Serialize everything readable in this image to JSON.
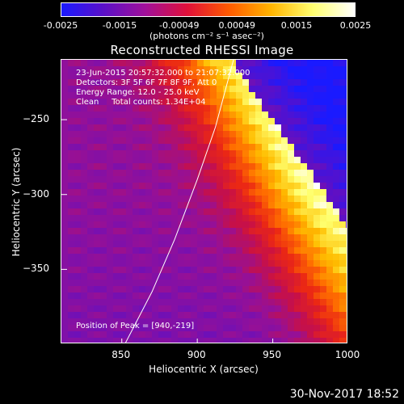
{
  "colorbar": {
    "ticks": [
      "-0.0025",
      "-0.0015",
      "-0.00049",
      "0.00049",
      "0.0015",
      "0.0025"
    ],
    "tick_values": [
      -0.0025,
      -0.0015,
      -0.00049,
      0.00049,
      0.0015,
      0.0025
    ],
    "units": "(photons cm⁻² s⁻¹ asec⁻²)",
    "range": [
      -0.0025,
      0.0025
    ],
    "gradient": [
      "#1a1aff",
      "#5a10c8",
      "#a0109a",
      "#e0103a",
      "#ff5a00",
      "#ffb400",
      "#ffff70",
      "#ffffff"
    ]
  },
  "title": "Reconstructed RHESSI Image",
  "annotations": {
    "time_range": "23-Jun-2015 20:57:32.000 to 21:07:32.000",
    "detectors": "Detectors: 3F 5F 6F 7F 8F 9F, Att 0",
    "energy_range": "Energy Range: 12.0 - 25.0 keV",
    "clean": "Clean     Total counts: 1.34E+04",
    "peak": "Position of Peak = [940,-219]"
  },
  "timestamp": "30-Nov-2017 18:52",
  "chart_data": {
    "type": "heatmap",
    "title": "Reconstructed RHESSI Image",
    "xlabel": "Heliocentric X (arcsec)",
    "ylabel": "Heliocentric Y (arcsec)",
    "xlim": [
      810,
      1000
    ],
    "ylim": [
      -400,
      -210
    ],
    "xticks": [
      850,
      900,
      950,
      1000
    ],
    "yticks": [
      -250,
      -300,
      -350
    ],
    "colorbar_range": [
      -0.0025,
      0.0025
    ],
    "peak_position": [
      940,
      -219
    ],
    "limb_curve": {
      "x": [
        852,
        870,
        885,
        900,
        912,
        920,
        924
      ],
      "y": [
        -400,
        -365,
        -330,
        -290,
        -255,
        -225,
        -210
      ]
    }
  }
}
